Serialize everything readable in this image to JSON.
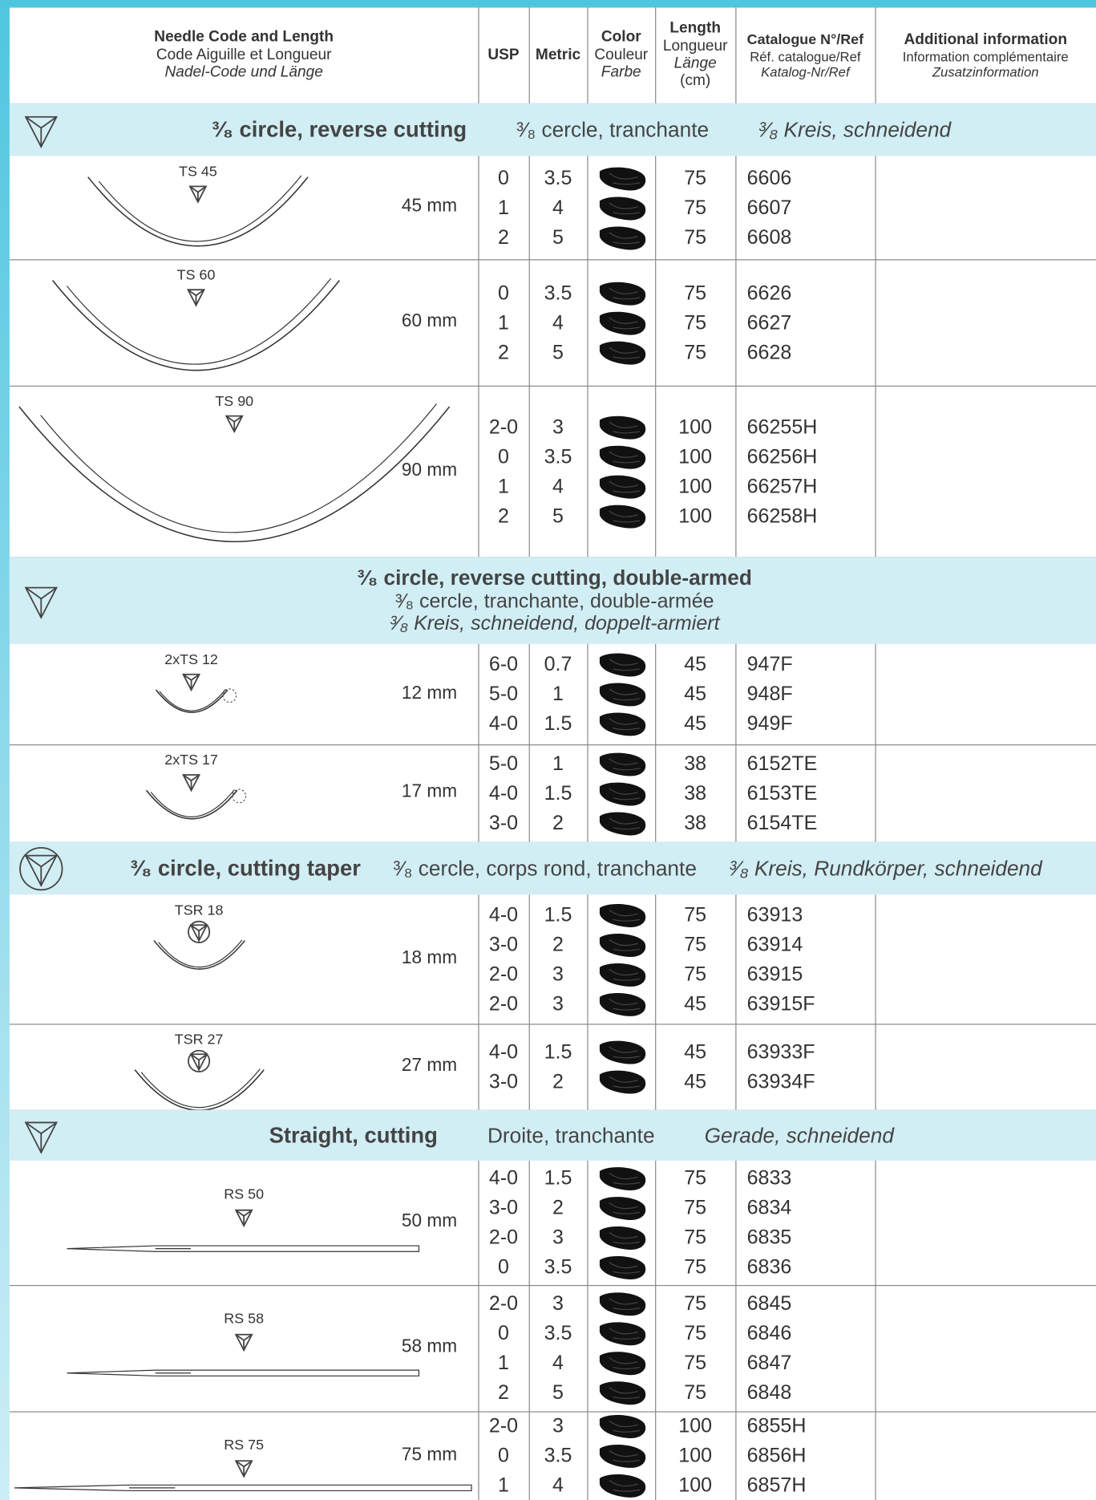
{
  "header": {
    "needle": [
      "Needle Code and Length",
      "Code Aiguille et Longueur",
      "Nadel-Code und Länge"
    ],
    "usp": "USP",
    "metric": "Metric",
    "color": [
      "Color",
      "Couleur",
      "Farbe"
    ],
    "length": [
      "Length",
      "Longueur",
      "Länge",
      "(cm)"
    ],
    "catalogue": [
      "Catalogue N°/Ref",
      "Réf. catalogue/Ref",
      "Katalog-Nr/Ref"
    ],
    "additional": [
      "Additional information",
      "Information complémentaire",
      "Zusatzinformation"
    ]
  },
  "sections": [
    {
      "title": {
        "en": "³⁄₈ circle, reverse cutting",
        "fr": "³⁄₈ cercle, tranchante",
        "de": "³⁄₈ Kreis, schneidend"
      },
      "needles": [
        {
          "code": "TS 45",
          "length": "45 mm",
          "rows": [
            {
              "usp": "0",
              "metric": 3.5,
              "length": 75,
              "ref": "6606"
            },
            {
              "usp": "1",
              "metric": 4,
              "length": 75,
              "ref": "6607"
            },
            {
              "usp": "2",
              "metric": 5,
              "length": 75,
              "ref": "6608"
            }
          ]
        },
        {
          "code": "TS 60",
          "length": "60 mm",
          "rows": [
            {
              "usp": "0",
              "metric": 3.5,
              "length": 75,
              "ref": "6626"
            },
            {
              "usp": "1",
              "metric": 4,
              "length": 75,
              "ref": "6627"
            },
            {
              "usp": "2",
              "metric": 5,
              "length": 75,
              "ref": "6628"
            }
          ]
        },
        {
          "code": "TS 90",
          "length": "90 mm",
          "rows": [
            {
              "usp": "2-0",
              "metric": 3,
              "length": 100,
              "ref": "66255H"
            },
            {
              "usp": "0",
              "metric": 3.5,
              "length": 100,
              "ref": "66256H"
            },
            {
              "usp": "1",
              "metric": 4,
              "length": 100,
              "ref": "66257H"
            },
            {
              "usp": "2",
              "metric": 5,
              "length": 100,
              "ref": "66258H"
            }
          ]
        }
      ]
    },
    {
      "title": {
        "en": "³⁄₈ circle, reverse cutting, double-armed",
        "fr": "³⁄₈ cercle, tranchante, double-armée",
        "de": "³⁄₈ Kreis, schneidend, doppelt-armiert"
      },
      "needles": [
        {
          "code": "2xTS 12",
          "length": "12 mm",
          "rows": [
            {
              "usp": "6-0",
              "metric": 0.7,
              "length": 45,
              "ref": "947F"
            },
            {
              "usp": "5-0",
              "metric": 1,
              "length": 45,
              "ref": "948F"
            },
            {
              "usp": "4-0",
              "metric": 1.5,
              "length": 45,
              "ref": "949F"
            }
          ]
        },
        {
          "code": "2xTS 17",
          "length": "17 mm",
          "rows": [
            {
              "usp": "5-0",
              "metric": 1,
              "length": 38,
              "ref": "6152TE"
            },
            {
              "usp": "4-0",
              "metric": 1.5,
              "length": 38,
              "ref": "6153TE"
            },
            {
              "usp": "3-0",
              "metric": 2,
              "length": 38,
              "ref": "6154TE"
            }
          ]
        }
      ]
    },
    {
      "title": {
        "en": "³⁄₈ circle, cutting taper",
        "fr": "³⁄₈ cercle, corps rond, tranchante",
        "de": "³⁄₈ Kreis, Rundkörper, schneidend"
      },
      "needles": [
        {
          "code": "TSR 18",
          "length": "18 mm",
          "rows": [
            {
              "usp": "4-0",
              "metric": 1.5,
              "length": 75,
              "ref": "63913"
            },
            {
              "usp": "3-0",
              "metric": 2,
              "length": 75,
              "ref": "63914"
            },
            {
              "usp": "2-0",
              "metric": 3,
              "length": 75,
              "ref": "63915"
            },
            {
              "usp": "2-0",
              "metric": 3,
              "length": 45,
              "ref": "63915F"
            }
          ]
        },
        {
          "code": "TSR 27",
          "length": "27 mm",
          "rows": [
            {
              "usp": "4-0",
              "metric": 1.5,
              "length": 45,
              "ref": "63933F"
            },
            {
              "usp": "3-0",
              "metric": 2,
              "length": 45,
              "ref": "63934F"
            }
          ]
        }
      ]
    },
    {
      "title": {
        "en": "Straight, cutting",
        "fr": "Droite, tranchante",
        "de": "Gerade, schneidend"
      },
      "needles": [
        {
          "code": "RS 50",
          "length": "50 mm",
          "rows": [
            {
              "usp": "4-0",
              "metric": 1.5,
              "length": 75,
              "ref": "6833"
            },
            {
              "usp": "3-0",
              "metric": 2,
              "length": 75,
              "ref": "6834"
            },
            {
              "usp": "2-0",
              "metric": 3,
              "length": 75,
              "ref": "6835"
            },
            {
              "usp": "0",
              "metric": 3.5,
              "length": 75,
              "ref": "6836"
            }
          ]
        },
        {
          "code": "RS 58",
          "length": "58 mm",
          "rows": [
            {
              "usp": "2-0",
              "metric": 3,
              "length": 75,
              "ref": "6845"
            },
            {
              "usp": "0",
              "metric": 3.5,
              "length": 75,
              "ref": "6846"
            },
            {
              "usp": "1",
              "metric": 4,
              "length": 75,
              "ref": "6847"
            },
            {
              "usp": "2",
              "metric": 5,
              "length": 75,
              "ref": "6848"
            }
          ]
        },
        {
          "code": "RS 75",
          "length": "75 mm",
          "rows": [
            {
              "usp": "2-0",
              "metric": 3,
              "length": 100,
              "ref": "6855H"
            },
            {
              "usp": "0",
              "metric": 3.5,
              "length": 100,
              "ref": "6856H"
            },
            {
              "usp": "1",
              "metric": 4,
              "length": 100,
              "ref": "6857H"
            }
          ]
        }
      ]
    }
  ]
}
